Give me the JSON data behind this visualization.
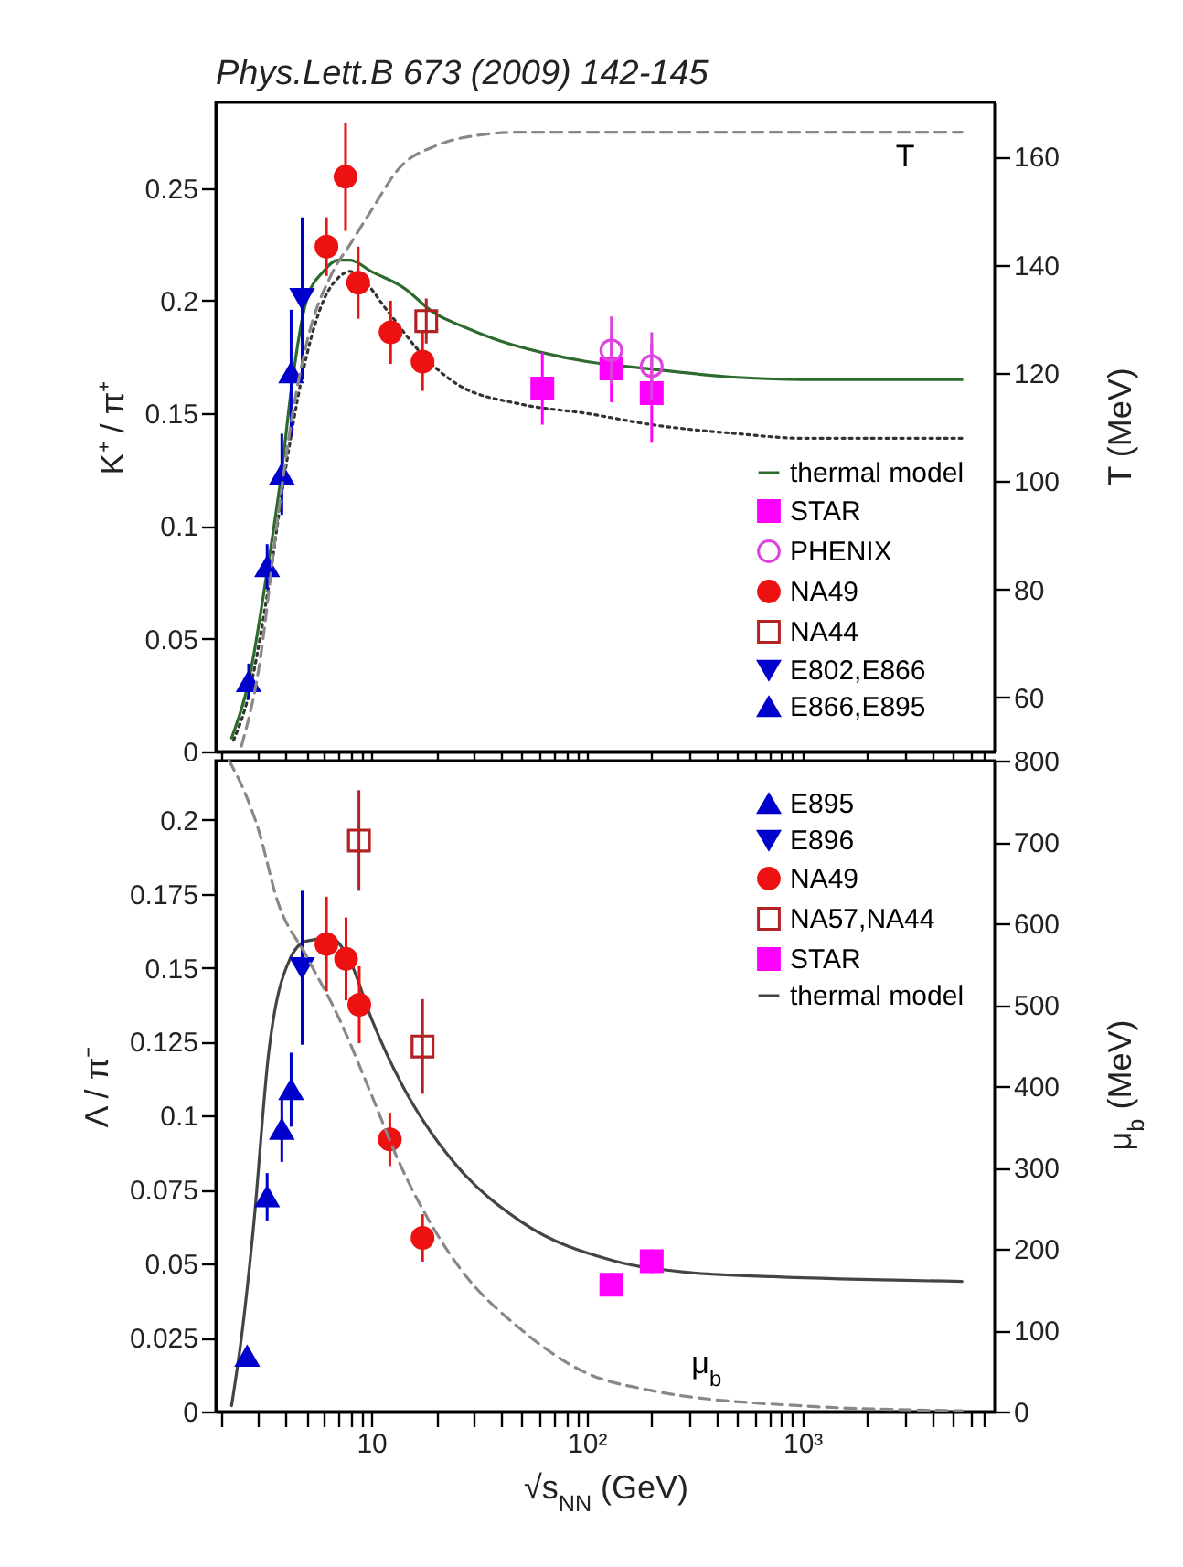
{
  "chart_data": [
    {
      "type": "scatter",
      "title": "Phys.Lett.B 673 (2009) 142-145",
      "ylabel": "K⁺ / π⁺",
      "y2label": "T (MeV)",
      "log": "x",
      "tick_labels": "y",
      "legend": "bottom right",
      "xlim": [
        1.9,
        7800
      ],
      "xticks": [
        {
          "value": 2,
          "label": null
        },
        {
          "value": 3,
          "label": null
        },
        {
          "value": 4,
          "label": null
        },
        {
          "value": 5,
          "label": null
        },
        {
          "value": 6,
          "label": null
        },
        {
          "value": 7,
          "label": null
        },
        {
          "value": 8,
          "label": null
        },
        {
          "value": 9,
          "label": null
        },
        {
          "value": 10,
          "label": null
        },
        {
          "value": 20,
          "label": null
        },
        {
          "value": 30,
          "label": null
        },
        {
          "value": 40,
          "label": null
        },
        {
          "value": 50,
          "label": null
        },
        {
          "value": 60,
          "label": null
        },
        {
          "value": 70,
          "label": null
        },
        {
          "value": 80,
          "label": null
        },
        {
          "value": 90,
          "label": null
        },
        {
          "value": 100,
          "label": null
        },
        {
          "value": 200,
          "label": null
        },
        {
          "value": 300,
          "label": null
        },
        {
          "value": 400,
          "label": null
        },
        {
          "value": 500,
          "label": null
        },
        {
          "value": 600,
          "label": null
        },
        {
          "value": 700,
          "label": null
        },
        {
          "value": 800,
          "label": null
        },
        {
          "value": 900,
          "label": null
        },
        {
          "value": 1000,
          "label": null
        },
        {
          "value": 2000,
          "label": null
        },
        {
          "value": 3000,
          "label": null
        },
        {
          "value": 4000,
          "label": null
        },
        {
          "value": 5000,
          "label": null
        },
        {
          "value": 6000,
          "label": null
        },
        {
          "value": 7000,
          "label": null
        }
      ],
      "ylim": [
        0,
        0.288
      ],
      "yticks": [
        0,
        0.05,
        0.1,
        0.15,
        0.2,
        0.25
      ],
      "y2lim": [
        50,
        170
      ],
      "y2ticks": [
        60,
        80,
        100,
        120,
        140,
        160
      ],
      "annotations": [
        "T"
      ],
      "series": [
        {
          "name": "thermal model",
          "type": "line",
          "color": "#2d6a2d",
          "x": [
            2.25,
            2.7,
            3.29,
            3.85,
            4.25,
            5,
            6,
            7,
            8,
            10,
            14,
            20,
            26,
            40,
            62,
            100,
            185,
            500,
            1000,
            5500
          ],
          "values": [
            0.006,
            0.031,
            0.08,
            0.125,
            0.16,
            0.2,
            0.213,
            0.218,
            0.218,
            0.213,
            0.206,
            0.194,
            0.189,
            0.182,
            0.177,
            0.173,
            0.17,
            0.166,
            0.165,
            0.165
          ]
        },
        {
          "name": "STAR",
          "marker": "square",
          "color": "#ff00ff",
          "x": [
            62.2,
            130,
            200
          ],
          "values": [
            0.161,
            0.17,
            0.159
          ],
          "errors": [
            0.016,
            0.015,
            0.022
          ]
        },
        {
          "name": "PHENIX",
          "marker": "circle-open",
          "color": "#dd44dd",
          "x": [
            130,
            200
          ],
          "values": [
            0.178,
            0.171
          ],
          "errors": [
            0.015,
            0.015
          ]
        },
        {
          "name": "NA49",
          "marker": "circle",
          "color": "#ee1111",
          "x": [
            6.2,
            7.6,
            8.7,
            12.3,
            17.3
          ],
          "values": [
            0.224,
            0.255,
            0.208,
            0.186,
            0.173
          ],
          "errors": [
            0.013,
            0.024,
            0.016,
            0.014,
            0.013
          ]
        },
        {
          "name": "NA44",
          "marker": "square-open",
          "color": "#b22222",
          "x": [
            18
          ],
          "values": [
            0.191
          ],
          "errors": [
            0.01
          ]
        },
        {
          "name": "E802,E866",
          "marker": "triangle-down",
          "color": "#0000cc",
          "x": [
            4.78
          ],
          "values": [
            0.201
          ],
          "errors": [
            0.036
          ]
        },
        {
          "name": "E866,E895",
          "marker": "triangle",
          "color": "#0000cc",
          "x": [
            2.7,
            3.29,
            3.85,
            4.25
          ],
          "values": [
            0.031,
            0.082,
            0.123,
            0.168
          ],
          "errors": [
            0.008,
            0.01,
            0.018,
            0.028
          ]
        },
        {
          "type": "line",
          "line_style": "dotted",
          "color": "#333333",
          "x": [
            2.3,
            2.7,
            3.3,
            4,
            5,
            6,
            7,
            8,
            9,
            12,
            17.3,
            25,
            50,
            100,
            200,
            500,
            1000,
            5500
          ],
          "values": [
            0.005,
            0.025,
            0.07,
            0.125,
            0.175,
            0.2,
            0.21,
            0.213,
            0.21,
            0.195,
            0.176,
            0.163,
            0.154,
            0.15,
            0.145,
            0.141,
            0.139,
            0.139
          ]
        },
        {
          "type": "line",
          "axis": "y2",
          "line_style": "dashed",
          "color": "#888888",
          "x": [
            2.5,
            3,
            3.68,
            4.3,
            5.13,
            6.5,
            8.05,
            10,
            13.6,
            20,
            26,
            50,
            100,
            5500
          ],
          "values": [
            51,
            65,
            93,
            112,
            127,
            138,
            144,
            150,
            158,
            162,
            163.4,
            164.5,
            164.5,
            164.5
          ]
        }
      ]
    },
    {
      "type": "scatter",
      "xlabel": "√s$_{NN}$ (GeV)",
      "ylabel": "Λ / π⁻",
      "y2label": "μ$_{b}$ (MeV)",
      "log": "x",
      "legend": "top right",
      "xlim": [
        1.9,
        7800
      ],
      "xticks": [
        {
          "value": 2,
          "label": null
        },
        {
          "value": 3,
          "label": null
        },
        {
          "value": 4,
          "label": null
        },
        {
          "value": 5,
          "label": null
        },
        {
          "value": 6,
          "label": null
        },
        {
          "value": 7,
          "label": null
        },
        {
          "value": 8,
          "label": null
        },
        {
          "value": 9,
          "label": null
        },
        10,
        {
          "value": 20,
          "label": null
        },
        {
          "value": 30,
          "label": null
        },
        {
          "value": 40,
          "label": null
        },
        {
          "value": 50,
          "label": null
        },
        {
          "value": 60,
          "label": null
        },
        {
          "value": 70,
          "label": null
        },
        {
          "value": 80,
          "label": null
        },
        {
          "value": 90,
          "label": null
        },
        {
          "value": 100,
          "label": "10²"
        },
        {
          "value": 200,
          "label": null
        },
        {
          "value": 300,
          "label": null
        },
        {
          "value": 400,
          "label": null
        },
        {
          "value": 500,
          "label": null
        },
        {
          "value": 600,
          "label": null
        },
        {
          "value": 700,
          "label": null
        },
        {
          "value": 800,
          "label": null
        },
        {
          "value": 900,
          "label": null
        },
        {
          "value": 1000,
          "label": "10³"
        },
        {
          "value": 2000,
          "label": null
        },
        {
          "value": 3000,
          "label": null
        },
        {
          "value": 4000,
          "label": null
        },
        {
          "value": 5000,
          "label": null
        },
        {
          "value": 6000,
          "label": null
        },
        {
          "value": 7000,
          "label": null
        }
      ],
      "ylim": [
        0,
        0.22
      ],
      "yticks": [
        0,
        0.025,
        0.05,
        0.075,
        0.1,
        0.125,
        0.15,
        0.175,
        0.2
      ],
      "y2lim": [
        0,
        800
      ],
      "y2ticks": [
        0,
        100,
        200,
        300,
        400,
        500,
        600,
        700,
        800
      ],
      "annotations": [
        "μ$_{b}$"
      ],
      "series": [
        {
          "name": "E895",
          "marker": "triangle",
          "color": "#0000cc",
          "x": [
            2.66,
            3.29,
            3.85,
            4.25
          ],
          "values": [
            0.0187,
            0.0726,
            0.0954,
            0.1088
          ],
          "errors": [
            0.003,
            0.008,
            0.011,
            0.0125
          ]
        },
        {
          "name": "E896",
          "marker": "triangle-down",
          "color": "#0000cc",
          "x": [
            4.78
          ],
          "values": [
            0.15
          ],
          "errors": [
            0.026
          ]
        },
        {
          "name": "NA49",
          "marker": "circle",
          "color": "#ee1111",
          "x": [
            6.2,
            7.64,
            8.8,
            12.2,
            17.3
          ],
          "values": [
            0.158,
            0.153,
            0.1375,
            0.092,
            0.0587
          ],
          "errors": [
            0.016,
            0.014,
            0.013,
            0.009,
            0.008
          ]
        },
        {
          "name": "NA57,NA44",
          "marker": "square-open",
          "color": "#b22222",
          "x": [
            8.77,
            17.3
          ],
          "values": [
            0.193,
            0.1234
          ],
          "errors": [
            0.017,
            0.016
          ]
        },
        {
          "name": "STAR",
          "marker": "square",
          "color": "#ff00ff",
          "x": [
            130,
            200
          ],
          "values": [
            0.0429,
            0.0508
          ],
          "errors": [
            0.004,
            0.004
          ]
        },
        {
          "name": "thermal model",
          "type": "line",
          "color": "#444444",
          "x": [
            2.25,
            2.5,
            2.84,
            3.33,
            4.2,
            5,
            6.5,
            8,
            10,
            14,
            17.7,
            25,
            50,
            133,
            300,
            731,
            5500
          ],
          "values": [
            0.002,
            0.025,
            0.062,
            0.12,
            0.153,
            0.159,
            0.16,
            0.152,
            0.133,
            0.11,
            0.0975,
            0.083,
            0.064,
            0.051,
            0.047,
            0.0456,
            0.044
          ]
        },
        {
          "type": "line",
          "axis": "y2",
          "line_style": "dashed",
          "color": "#888888",
          "x": [
            2.19,
            2.6,
            3,
            3.68,
            5,
            7.07,
            10,
            13.6,
            20,
            26,
            50,
            96.6,
            198,
            1000,
            5500
          ],
          "values": [
            800,
            760,
            715,
            627,
            560,
            484,
            390,
            304,
            220,
            175,
            100,
            49,
            26,
            7,
            1
          ]
        }
      ]
    }
  ]
}
